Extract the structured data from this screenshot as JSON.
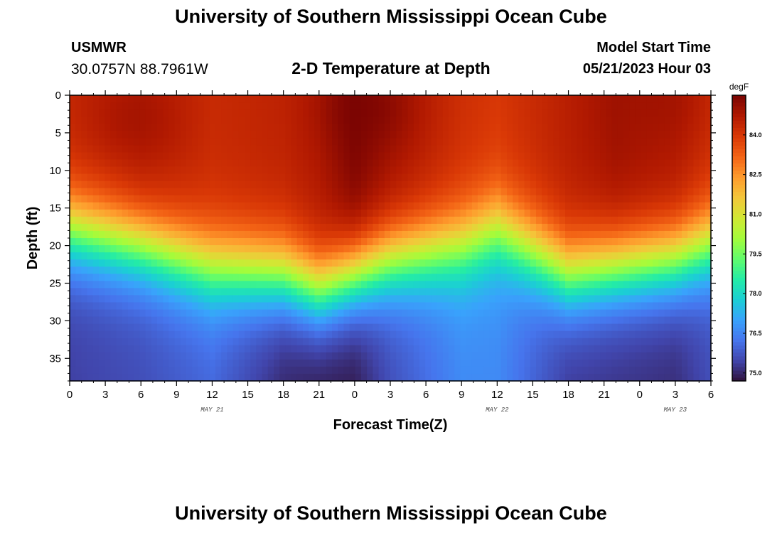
{
  "header": {
    "title": "University of Southern Mississippi Ocean Cube",
    "station": "USMWR",
    "coords": "30.0757N  88.7961W",
    "subtitle": "2-D Temperature at Depth",
    "start_label": "Model Start Time",
    "start_value": "05/21/2023 Hour 03"
  },
  "footer": {
    "title": "University of Southern Mississippi Ocean Cube"
  },
  "colors": {
    "plot_border": "#000000",
    "colormap": [
      "#30123b",
      "#4145ab",
      "#4675ed",
      "#39a2fc",
      "#1bcfd4",
      "#24eca6",
      "#61fc6c",
      "#a4fc3b",
      "#d1e834",
      "#f3c63a",
      "#fe9b2d",
      "#f36315",
      "#d93806",
      "#b11901",
      "#7a0402"
    ]
  },
  "chart_data": {
    "type": "heatmap",
    "title": "2-D Temperature at Depth",
    "xlabel": "Forecast Time(Z)",
    "ylabel": "Depth (ft)",
    "x_range_hours": [
      0,
      54
    ],
    "x_tick_labels": [
      "0",
      "3",
      "6",
      "9",
      "12",
      "15",
      "18",
      "21",
      "0",
      "3",
      "6",
      "9",
      "12",
      "15",
      "18",
      "21",
      "0",
      "3",
      "6"
    ],
    "x_date_labels": [
      {
        "text": "MAY 21",
        "hour": 12
      },
      {
        "text": "MAY 22",
        "hour": 36
      },
      {
        "text": "MAY 23",
        "hour": 51
      }
    ],
    "ylim": [
      0,
      38
    ],
    "y_ticks": [
      0,
      5,
      10,
      15,
      20,
      25,
      30,
      35
    ],
    "colorbar": {
      "unit": "degF",
      "range": [
        74.7,
        85.5
      ],
      "ticks": [
        75.0,
        76.5,
        78.0,
        79.5,
        81.0,
        82.5,
        84.0
      ],
      "tick_labels": [
        "75.0",
        "76.5",
        "78.0",
        "79.5",
        "81.0",
        "82.5",
        "84.0"
      ]
    },
    "hours": [
      0,
      6,
      12,
      18,
      21,
      24,
      27,
      33,
      36,
      42,
      46,
      51,
      54
    ],
    "thermocline_depth_ft": [
      14,
      16,
      19,
      20,
      22,
      20,
      18,
      16,
      14,
      20,
      19,
      18,
      16
    ],
    "surface_temp_degF": [
      84.4,
      84.8,
      84.3,
      84.5,
      84.8,
      85.5,
      85.0,
      84.2,
      84.0,
      84.6,
      85.0,
      84.8,
      84.3
    ],
    "bottom_temp_degF": [
      75.4,
      75.6,
      76.0,
      75.0,
      74.8,
      74.8,
      75.6,
      76.6,
      76.6,
      75.3,
      75.2,
      75.1,
      75.6
    ],
    "surface_hotspots": [
      {
        "hour": 5.5,
        "depth_ft": 4,
        "temp_degF": 85.0
      },
      {
        "hour": 25,
        "depth_ft": 2,
        "temp_degF": 85.5
      },
      {
        "hour": 49.5,
        "depth_ft": 1,
        "temp_degF": 85.0
      }
    ]
  }
}
